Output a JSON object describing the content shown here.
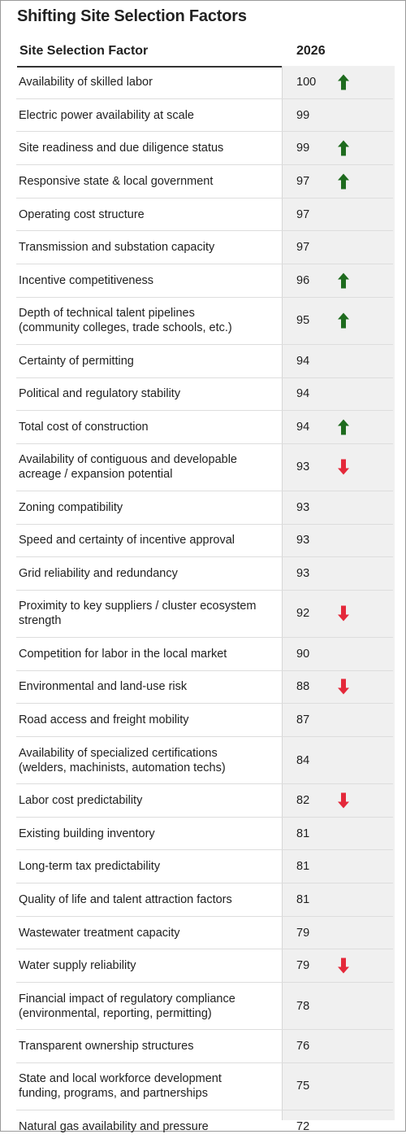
{
  "title": "Shifting Site Selection Factors",
  "colors": {
    "up": "#1e6b1e",
    "down": "#e4283a"
  },
  "chart_data": {
    "type": "table",
    "columns": [
      "Site Selection Factor",
      "2026"
    ],
    "rows": [
      {
        "factor": [
          "Availability of skilled labor"
        ],
        "value": "100",
        "trend": "up"
      },
      {
        "factor": [
          "Electric power availability at scale"
        ],
        "value": "99",
        "trend": ""
      },
      {
        "factor": [
          "Site readiness and due diligence status"
        ],
        "value": "99",
        "trend": "up"
      },
      {
        "factor": [
          "Responsive state & local government"
        ],
        "value": "97",
        "trend": "up"
      },
      {
        "factor": [
          "Operating cost structure"
        ],
        "value": "97",
        "trend": ""
      },
      {
        "factor": [
          "Transmission and substation capacity"
        ],
        "value": "97",
        "trend": ""
      },
      {
        "factor": [
          "Incentive competitiveness"
        ],
        "value": "96",
        "trend": "up"
      },
      {
        "factor": [
          "Depth of technical talent pipelines",
          "(community colleges, trade schools, etc.)"
        ],
        "value": "95",
        "trend": "up"
      },
      {
        "factor": [
          "Certainty of permitting"
        ],
        "value": "94",
        "trend": ""
      },
      {
        "factor": [
          "Political and regulatory stability"
        ],
        "value": "94",
        "trend": ""
      },
      {
        "factor": [
          "Total cost of construction"
        ],
        "value": "94",
        "trend": "up"
      },
      {
        "factor": [
          "Availability of contiguous and developable",
          "acreage / expansion potential"
        ],
        "value": "93",
        "trend": "down"
      },
      {
        "factor": [
          "Zoning compatibility"
        ],
        "value": "93",
        "trend": ""
      },
      {
        "factor": [
          "Speed and certainty of incentive approval"
        ],
        "value": "93",
        "trend": ""
      },
      {
        "factor": [
          "Grid reliability and redundancy"
        ],
        "value": "93",
        "trend": ""
      },
      {
        "factor": [
          "Proximity to key suppliers / cluster ecosystem",
          "strength"
        ],
        "value": "92",
        "trend": "down"
      },
      {
        "factor": [
          "Competition for labor in the local market"
        ],
        "value": "90",
        "trend": ""
      },
      {
        "factor": [
          "Environmental and land-use risk"
        ],
        "value": "88",
        "trend": "down"
      },
      {
        "factor": [
          "Road access and freight mobility"
        ],
        "value": "87",
        "trend": ""
      },
      {
        "factor": [
          "Availability of specialized certifications",
          "(welders, machinists, automation techs)"
        ],
        "value": "84",
        "trend": ""
      },
      {
        "factor": [
          "Labor cost predictability"
        ],
        "value": "82",
        "trend": "down"
      },
      {
        "factor": [
          "Existing building inventory"
        ],
        "value": "81",
        "trend": ""
      },
      {
        "factor": [
          "Long-term tax predictability"
        ],
        "value": "81",
        "trend": ""
      },
      {
        "factor": [
          "Quality of life and talent attraction factors"
        ],
        "value": "81",
        "trend": ""
      },
      {
        "factor": [
          "Wastewater treatment capacity"
        ],
        "value": "79",
        "trend": ""
      },
      {
        "factor": [
          "Water supply reliability"
        ],
        "value": "79",
        "trend": "down"
      },
      {
        "factor": [
          "Financial impact of regulatory compliance",
          "(environmental, reporting, permitting)"
        ],
        "value": "78",
        "trend": ""
      },
      {
        "factor": [
          "Transparent ownership structures"
        ],
        "value": "76",
        "trend": ""
      },
      {
        "factor": [
          "State and local workforce development",
          "funding, programs, and partnerships"
        ],
        "value": "75",
        "trend": ""
      },
      {
        "factor": [
          "Natural gas availability and pressure"
        ],
        "value": "72",
        "trend": ""
      }
    ]
  }
}
